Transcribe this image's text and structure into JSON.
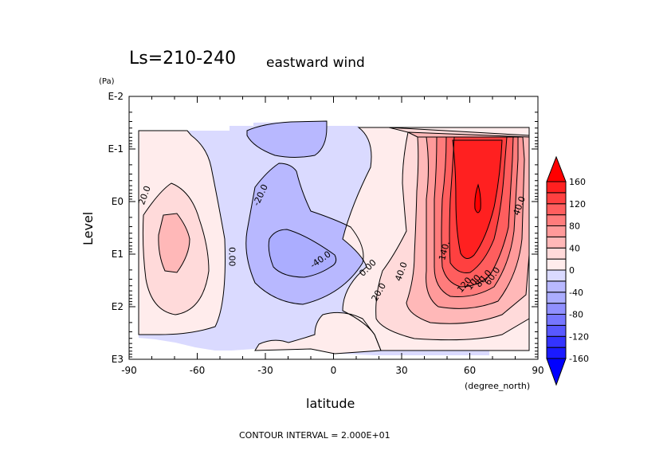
{
  "chart_data": {
    "type": "heatmap",
    "subtype": "filled-contour",
    "title": "Ls=210-240",
    "subtitle": "eastward wind",
    "xlabel": "latitude",
    "xunits": "(degree_north)",
    "ylabel": "Level",
    "yunits": "(Pa)",
    "xlim": [
      -90,
      90
    ],
    "ylim_log10": [
      -2,
      3
    ],
    "y_inverted": true,
    "x_ticks": [
      "-90",
      "-60",
      "-30",
      "0",
      "30",
      "60",
      "90"
    ],
    "x_tick_values": [
      -90,
      -60,
      -30,
      0,
      30,
      60,
      90
    ],
    "y_ticks": [
      "E-2",
      "E-1",
      "E0",
      "E1",
      "E2",
      "E3"
    ],
    "y_tick_values": [
      -2,
      -1,
      0,
      1,
      2,
      3
    ],
    "contour_interval_text": "CONTOUR INTERVAL = 2.000E+01",
    "contour_interval": 20,
    "contour_labels": [
      {
        "text": "20.0",
        "lat": -82,
        "logp": -0.1
      },
      {
        "text": "-20.0",
        "lat": -31,
        "logp": -0.1
      },
      {
        "text": "0.00",
        "lat": -46,
        "logp": 1.05
      },
      {
        "text": "-40.0",
        "lat": -5,
        "logp": 1.15
      },
      {
        "text": "0.00",
        "lat": 16,
        "logp": 1.3
      },
      {
        "text": "20.0",
        "lat": 21,
        "logp": 1.75
      },
      {
        "text": "40.0",
        "lat": 31,
        "logp": 1.35
      },
      {
        "text": "140.",
        "lat": 50,
        "logp": 0.95
      },
      {
        "text": "120.",
        "lat": 59,
        "logp": 1.6
      },
      {
        "text": "100.",
        "lat": 63,
        "logp": 1.55
      },
      {
        "text": "80.0",
        "lat": 67,
        "logp": 1.5
      },
      {
        "text": "60.0",
        "lat": 71,
        "logp": 1.45
      },
      {
        "text": "40.0",
        "lat": 83,
        "logp": 0.1
      }
    ],
    "features": [
      {
        "description": "westerly jet maximum",
        "lat": 63,
        "logp": 0.1,
        "value_min": 160
      },
      {
        "description": "easterly minimum",
        "lat": -20,
        "logp": 1.0,
        "value_max": -40
      },
      {
        "description": "southern westerly",
        "lat": -73,
        "logp": 0.8,
        "value_min": 40
      }
    ],
    "colorbar": {
      "levels": [
        -160,
        -140,
        -120,
        -100,
        -80,
        -60,
        -40,
        -20,
        0,
        20,
        40,
        60,
        80,
        100,
        120,
        140,
        160
      ],
      "tick_labels": [
        "160",
        "120",
        "80",
        "40",
        "0",
        "-40",
        "-80",
        "-120",
        "-160"
      ],
      "tick_values": [
        160,
        120,
        80,
        40,
        0,
        -40,
        -80,
        -120,
        -160
      ],
      "band_colors": [
        "#0000ff",
        "#1a1aff",
        "#3333ff",
        "#5858ff",
        "#7676ff",
        "#9090ff",
        "#abadff",
        "#b8b8ff",
        "#dadaff",
        "#ffecec",
        "#ffdada",
        "#ffb8b8",
        "#ff9a9a",
        "#ff7c7c",
        "#ff5e5e",
        "#ff4040",
        "#ff2020",
        "#ff0000"
      ],
      "extend": "both"
    }
  }
}
